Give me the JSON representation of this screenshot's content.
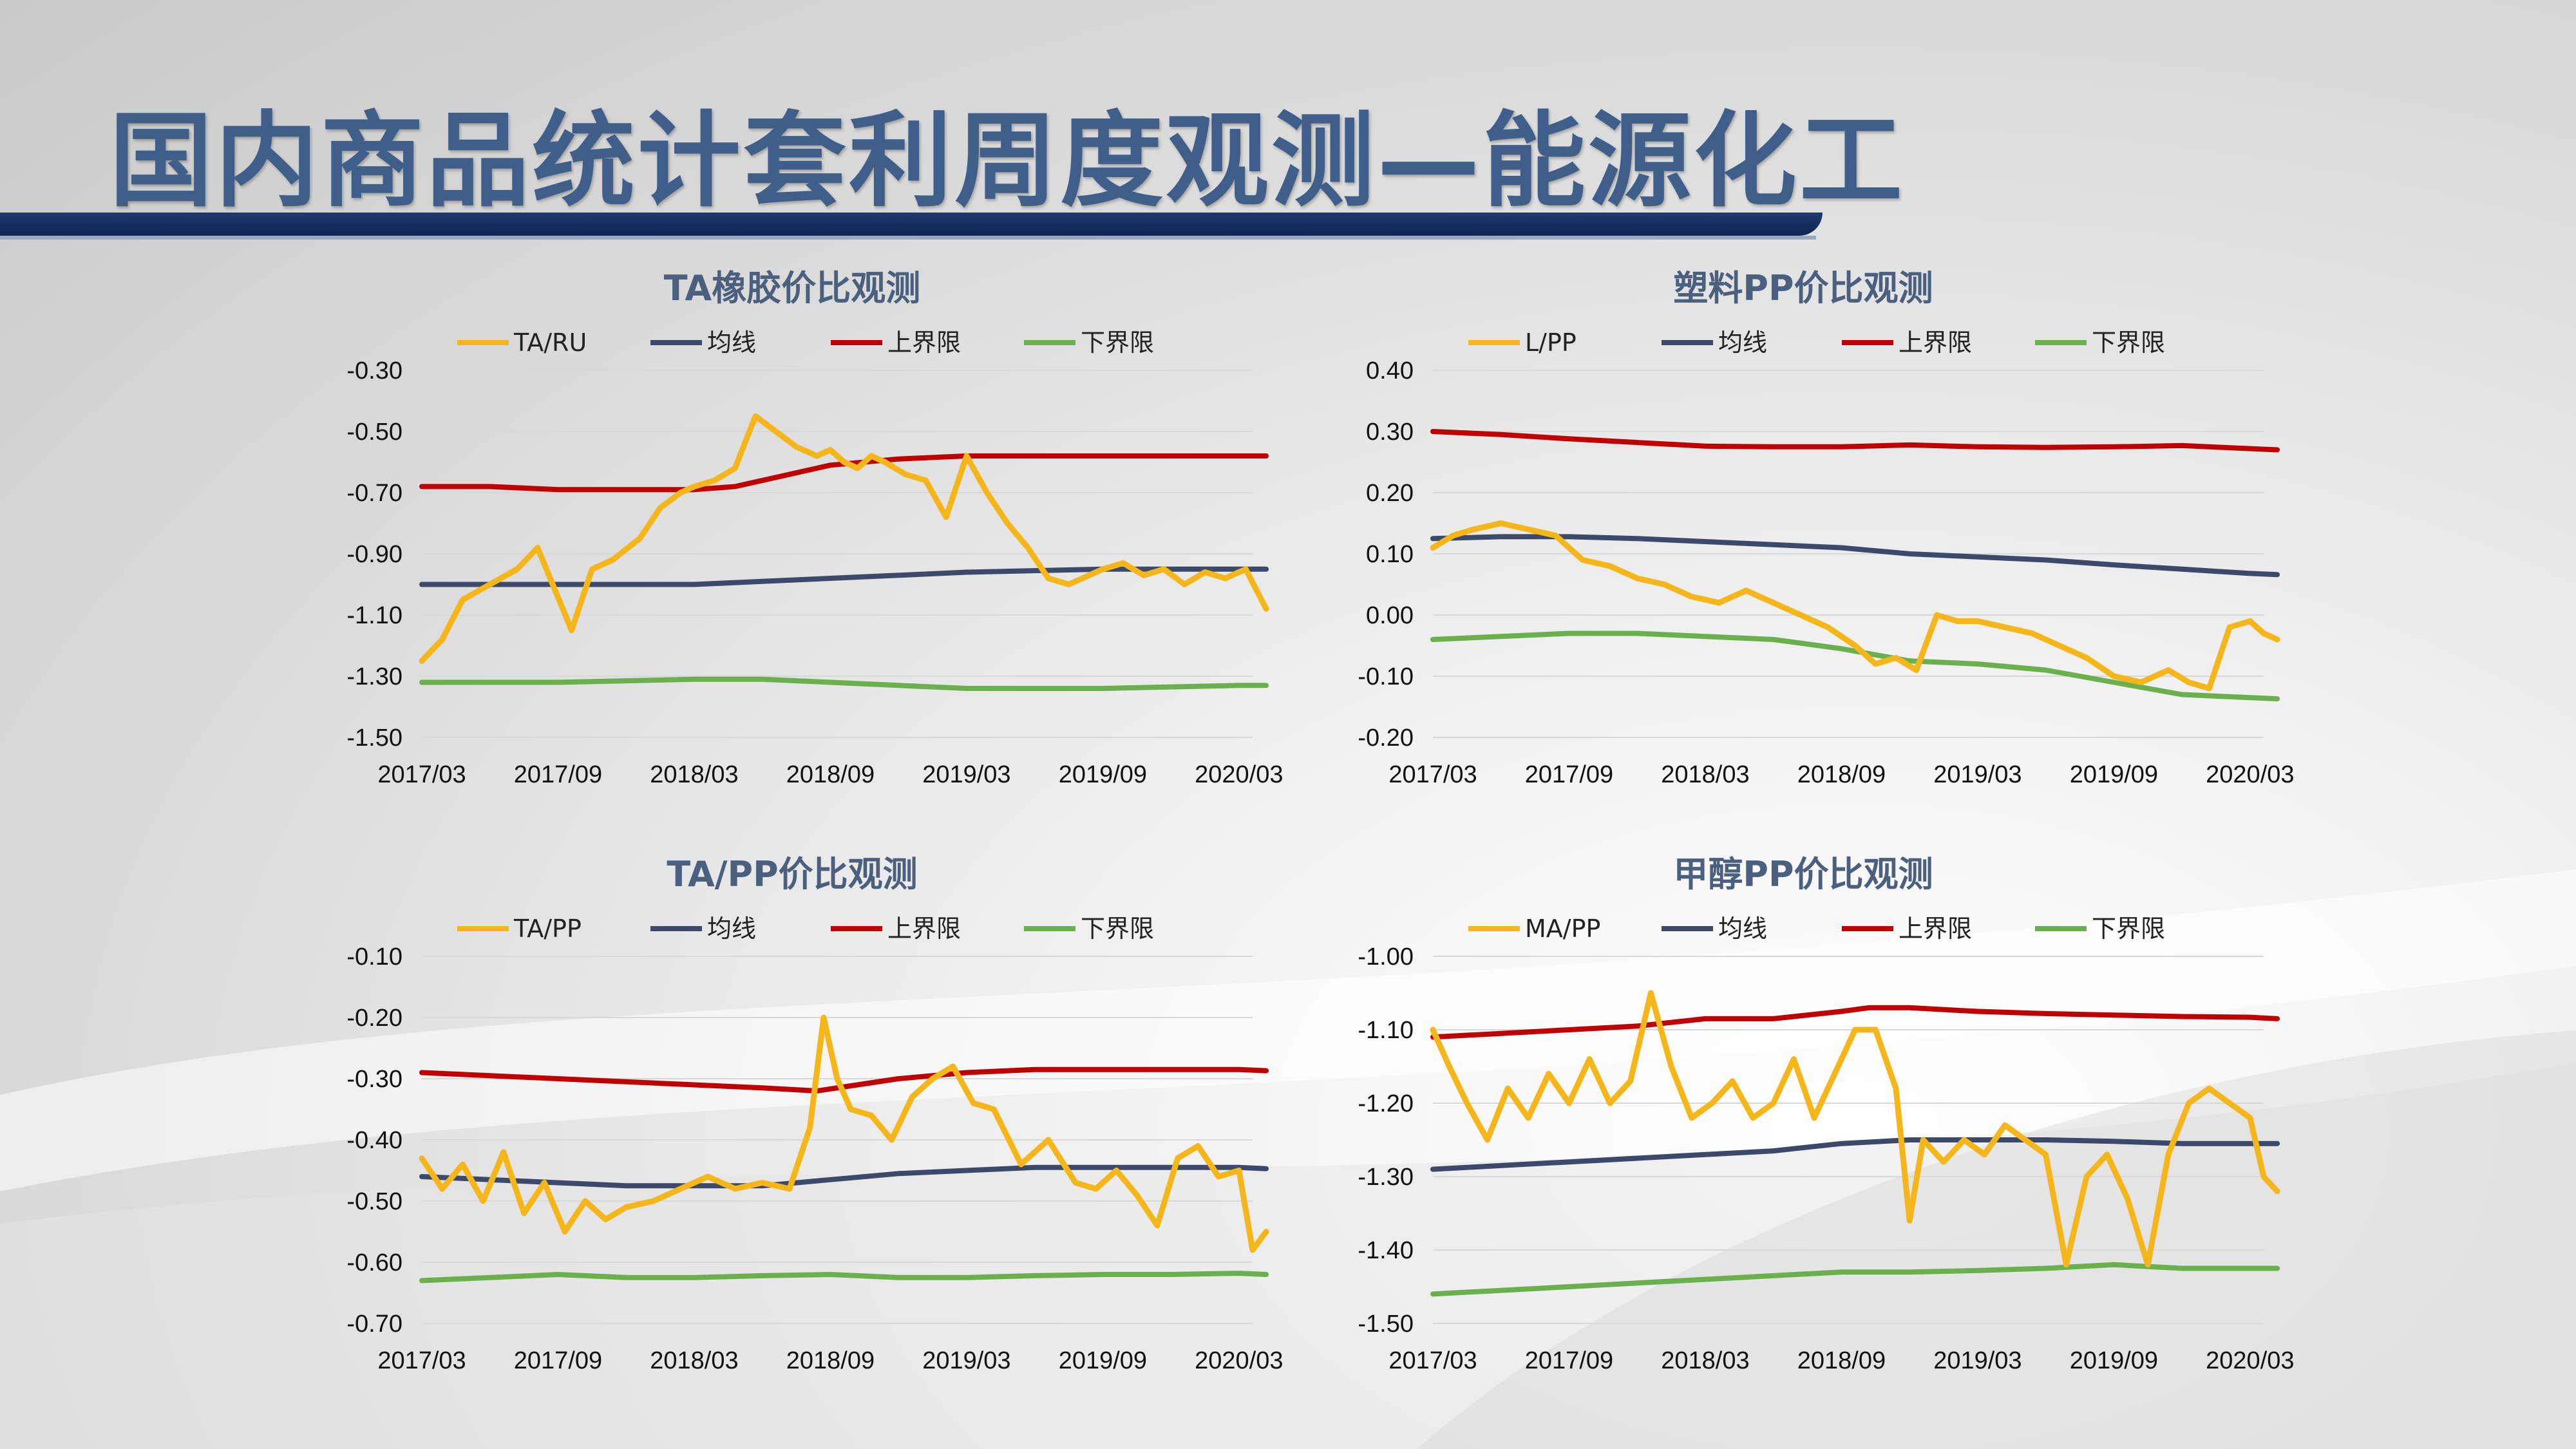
{
  "page": {
    "title": "国内商品统计套利周度观测—能源化工"
  },
  "colors": {
    "title": "#3f5f8a",
    "ratio": "#f4b61a",
    "mean": "#3b4a6b",
    "upper": "#c00000",
    "lower": "#6ab04c"
  },
  "chart_data": [
    {
      "type": "line",
      "title": "TA橡胶价比观测",
      "legend": [
        "TA/RU",
        "均线",
        "上界限",
        "下界限"
      ],
      "x_ticks": [
        "2017/03",
        "2017/09",
        "2018/03",
        "2018/09",
        "2019/03",
        "2019/09",
        "2020/03"
      ],
      "y_ticks": [
        "-0.30",
        "-0.50",
        "-0.70",
        "-0.90",
        "-1.10",
        "-1.30",
        "-1.50"
      ],
      "ylim": [
        -1.5,
        -0.3
      ],
      "series": [
        {
          "name": "TA/RU",
          "x": [
            0,
            0.15,
            0.3,
            0.5,
            0.7,
            0.85,
            1.1,
            1.25,
            1.4,
            1.6,
            1.75,
            1.9,
            2.0,
            2.15,
            2.3,
            2.45,
            2.6,
            2.75,
            2.9,
            3.0,
            3.1,
            3.2,
            3.3,
            3.4,
            3.55,
            3.7,
            3.85,
            4.0,
            4.15,
            4.3,
            4.45,
            4.6,
            4.75,
            4.9,
            5.0,
            5.15,
            5.3,
            5.45,
            5.6,
            5.75,
            5.9,
            6.05,
            6.2
          ],
          "values": [
            -1.25,
            -1.18,
            -1.05,
            -1.0,
            -0.95,
            -0.88,
            -1.15,
            -0.95,
            -0.92,
            -0.85,
            -0.75,
            -0.7,
            -0.68,
            -0.66,
            -0.62,
            -0.45,
            -0.5,
            -0.55,
            -0.58,
            -0.56,
            -0.6,
            -0.62,
            -0.58,
            -0.6,
            -0.64,
            -0.66,
            -0.78,
            -0.58,
            -0.7,
            -0.8,
            -0.88,
            -0.98,
            -1.0,
            -0.97,
            -0.95,
            -0.93,
            -0.97,
            -0.95,
            -1.0,
            -0.96,
            -0.98,
            -0.95,
            -1.08
          ]
        },
        {
          "name": "均线",
          "x": [
            0,
            0.5,
            1,
            1.5,
            2,
            2.5,
            3,
            3.5,
            4,
            4.5,
            5,
            5.5,
            6,
            6.2
          ],
          "values": [
            -1.0,
            -1.0,
            -1.0,
            -1.0,
            -1.0,
            -0.99,
            -0.98,
            -0.97,
            -0.96,
            -0.955,
            -0.95,
            -0.95,
            -0.95,
            -0.95
          ]
        },
        {
          "name": "上界限",
          "x": [
            0,
            0.5,
            1,
            1.5,
            2,
            2.3,
            2.6,
            3,
            3.5,
            4,
            4.5,
            5,
            5.5,
            6,
            6.2
          ],
          "values": [
            -0.68,
            -0.68,
            -0.69,
            -0.69,
            -0.69,
            -0.68,
            -0.65,
            -0.61,
            -0.59,
            -0.58,
            -0.58,
            -0.58,
            -0.58,
            -0.58,
            -0.58
          ]
        },
        {
          "name": "下界限",
          "x": [
            0,
            0.5,
            1,
            1.5,
            2,
            2.5,
            3,
            3.5,
            4,
            4.5,
            5,
            5.5,
            6,
            6.2
          ],
          "values": [
            -1.32,
            -1.32,
            -1.32,
            -1.315,
            -1.31,
            -1.31,
            -1.32,
            -1.33,
            -1.34,
            -1.34,
            -1.34,
            -1.335,
            -1.33,
            -1.33
          ]
        }
      ]
    },
    {
      "type": "line",
      "title": "塑料PP价比观测",
      "legend": [
        "L/PP",
        "均线",
        "上界限",
        "下界限"
      ],
      "x_ticks": [
        "2017/03",
        "2017/09",
        "2018/03",
        "2018/09",
        "2019/03",
        "2019/09",
        "2020/03"
      ],
      "y_ticks": [
        "0.40",
        "0.30",
        "0.20",
        "0.10",
        "0.00",
        "-0.10",
        "-0.20"
      ],
      "ylim": [
        -0.2,
        0.4
      ],
      "series": [
        {
          "name": "L/PP",
          "x": [
            0,
            0.15,
            0.3,
            0.5,
            0.7,
            0.9,
            1.1,
            1.3,
            1.5,
            1.7,
            1.9,
            2.1,
            2.3,
            2.5,
            2.7,
            2.9,
            3.1,
            3.25,
            3.4,
            3.55,
            3.7,
            3.85,
            4.0,
            4.2,
            4.4,
            4.6,
            4.8,
            5.0,
            5.2,
            5.4,
            5.55,
            5.7,
            5.85,
            6.0,
            6.1,
            6.2
          ],
          "values": [
            0.11,
            0.13,
            0.14,
            0.15,
            0.14,
            0.13,
            0.09,
            0.08,
            0.06,
            0.05,
            0.03,
            0.02,
            0.04,
            0.02,
            0.0,
            -0.02,
            -0.05,
            -0.08,
            -0.07,
            -0.09,
            0.0,
            -0.01,
            -0.01,
            -0.02,
            -0.03,
            -0.05,
            -0.07,
            -0.1,
            -0.11,
            -0.09,
            -0.11,
            -0.12,
            -0.02,
            -0.01,
            -0.03,
            -0.04
          ]
        },
        {
          "name": "均线",
          "x": [
            0,
            0.5,
            1,
            1.5,
            2,
            2.5,
            3,
            3.5,
            4,
            4.5,
            5,
            5.5,
            6,
            6.2
          ],
          "values": [
            0.125,
            0.128,
            0.128,
            0.125,
            0.12,
            0.115,
            0.11,
            0.1,
            0.095,
            0.09,
            0.082,
            0.075,
            0.068,
            0.066
          ]
        },
        {
          "name": "上界限",
          "x": [
            0,
            0.5,
            1,
            1.5,
            2,
            2.5,
            3,
            3.5,
            4,
            4.5,
            5,
            5.5,
            6,
            6.2
          ],
          "values": [
            0.3,
            0.295,
            0.288,
            0.282,
            0.276,
            0.275,
            0.275,
            0.278,
            0.275,
            0.274,
            0.275,
            0.277,
            0.272,
            0.27
          ]
        },
        {
          "name": "下界限",
          "x": [
            0,
            0.5,
            1,
            1.5,
            2,
            2.5,
            3,
            3.5,
            4,
            4.5,
            5,
            5.5,
            6,
            6.2
          ],
          "values": [
            -0.04,
            -0.035,
            -0.03,
            -0.03,
            -0.035,
            -0.04,
            -0.055,
            -0.075,
            -0.08,
            -0.09,
            -0.11,
            -0.13,
            -0.135,
            -0.137
          ]
        }
      ]
    },
    {
      "type": "line",
      "title": "TA/PP价比观测",
      "legend": [
        "TA/PP",
        "均线",
        "上界限",
        "下界限"
      ],
      "x_ticks": [
        "2017/03",
        "2017/09",
        "2018/03",
        "2018/09",
        "2019/03",
        "2019/09",
        "2020/03"
      ],
      "y_ticks": [
        "-0.10",
        "-0.20",
        "-0.30",
        "-0.40",
        "-0.50",
        "-0.60",
        "-0.70"
      ],
      "ylim": [
        -0.7,
        -0.1
      ],
      "series": [
        {
          "name": "TA/PP",
          "x": [
            0,
            0.15,
            0.3,
            0.45,
            0.6,
            0.75,
            0.9,
            1.05,
            1.2,
            1.35,
            1.5,
            1.7,
            1.9,
            2.1,
            2.3,
            2.5,
            2.7,
            2.85,
            2.95,
            3.05,
            3.15,
            3.3,
            3.45,
            3.6,
            3.75,
            3.9,
            4.05,
            4.2,
            4.4,
            4.6,
            4.8,
            4.95,
            5.1,
            5.25,
            5.4,
            5.55,
            5.7,
            5.85,
            6.0,
            6.1,
            6.2
          ],
          "values": [
            -0.43,
            -0.48,
            -0.44,
            -0.5,
            -0.42,
            -0.52,
            -0.47,
            -0.55,
            -0.5,
            -0.53,
            -0.51,
            -0.5,
            -0.48,
            -0.46,
            -0.48,
            -0.47,
            -0.48,
            -0.38,
            -0.2,
            -0.3,
            -0.35,
            -0.36,
            -0.4,
            -0.33,
            -0.3,
            -0.28,
            -0.34,
            -0.35,
            -0.44,
            -0.4,
            -0.47,
            -0.48,
            -0.45,
            -0.49,
            -0.54,
            -0.43,
            -0.41,
            -0.46,
            -0.45,
            -0.58,
            -0.55
          ]
        },
        {
          "name": "均线",
          "x": [
            0,
            0.5,
            1,
            1.5,
            2,
            2.5,
            3,
            3.5,
            4,
            4.5,
            5,
            5.5,
            6,
            6.2
          ],
          "values": [
            -0.46,
            -0.465,
            -0.47,
            -0.475,
            -0.475,
            -0.475,
            -0.465,
            -0.455,
            -0.45,
            -0.445,
            -0.445,
            -0.445,
            -0.445,
            -0.447
          ]
        },
        {
          "name": "上界限",
          "x": [
            0,
            0.5,
            1,
            1.5,
            2,
            2.5,
            2.9,
            3.2,
            3.5,
            4,
            4.5,
            5,
            5.5,
            6,
            6.2
          ],
          "values": [
            -0.29,
            -0.295,
            -0.3,
            -0.305,
            -0.31,
            -0.315,
            -0.32,
            -0.31,
            -0.3,
            -0.29,
            -0.285,
            -0.285,
            -0.285,
            -0.285,
            -0.287
          ]
        },
        {
          "name": "下界限",
          "x": [
            0,
            0.5,
            1,
            1.5,
            2,
            2.5,
            3,
            3.5,
            4,
            4.5,
            5,
            5.5,
            6,
            6.2
          ],
          "values": [
            -0.63,
            -0.625,
            -0.62,
            -0.625,
            -0.625,
            -0.622,
            -0.62,
            -0.625,
            -0.625,
            -0.622,
            -0.62,
            -0.62,
            -0.618,
            -0.62
          ]
        }
      ]
    },
    {
      "type": "line",
      "title": "甲醇PP价比观测",
      "legend": [
        "MA/PP",
        "均线",
        "上界限",
        "下界限"
      ],
      "x_ticks": [
        "2017/03",
        "2017/09",
        "2018/03",
        "2018/09",
        "2019/03",
        "2019/09",
        "2020/03"
      ],
      "y_ticks": [
        "-1.00",
        "-1.10",
        "-1.20",
        "-1.30",
        "-1.40",
        "-1.50"
      ],
      "ylim": [
        -1.5,
        -1.0
      ],
      "series": [
        {
          "name": "MA/PP",
          "x": [
            0,
            0.12,
            0.25,
            0.4,
            0.55,
            0.7,
            0.85,
            1.0,
            1.15,
            1.3,
            1.45,
            1.6,
            1.75,
            1.9,
            2.05,
            2.2,
            2.35,
            2.5,
            2.65,
            2.8,
            2.95,
            3.1,
            3.25,
            3.4,
            3.5,
            3.6,
            3.75,
            3.9,
            4.05,
            4.2,
            4.35,
            4.5,
            4.65,
            4.8,
            4.95,
            5.1,
            5.25,
            5.4,
            5.55,
            5.7,
            5.85,
            6.0,
            6.1,
            6.2
          ],
          "values": [
            -1.1,
            -1.15,
            -1.2,
            -1.25,
            -1.18,
            -1.22,
            -1.16,
            -1.2,
            -1.14,
            -1.2,
            -1.17,
            -1.05,
            -1.15,
            -1.22,
            -1.2,
            -1.17,
            -1.22,
            -1.2,
            -1.14,
            -1.22,
            -1.16,
            -1.1,
            -1.1,
            -1.18,
            -1.36,
            -1.25,
            -1.28,
            -1.25,
            -1.27,
            -1.23,
            -1.25,
            -1.27,
            -1.42,
            -1.3,
            -1.27,
            -1.33,
            -1.42,
            -1.27,
            -1.2,
            -1.18,
            -1.2,
            -1.22,
            -1.3,
            -1.32
          ]
        },
        {
          "name": "均线",
          "x": [
            0,
            0.5,
            1,
            1.5,
            2,
            2.5,
            3,
            3.5,
            4,
            4.5,
            5,
            5.5,
            6,
            6.2
          ],
          "values": [
            -1.29,
            -1.285,
            -1.28,
            -1.275,
            -1.27,
            -1.265,
            -1.255,
            -1.25,
            -1.25,
            -1.25,
            -1.252,
            -1.255,
            -1.255,
            -1.255
          ]
        },
        {
          "name": "上界限",
          "x": [
            0,
            0.5,
            1,
            1.5,
            2,
            2.5,
            3,
            3.2,
            3.5,
            4,
            4.5,
            5,
            5.5,
            6,
            6.2
          ],
          "values": [
            -1.11,
            -1.105,
            -1.1,
            -1.095,
            -1.085,
            -1.085,
            -1.075,
            -1.07,
            -1.07,
            -1.075,
            -1.078,
            -1.08,
            -1.082,
            -1.083,
            -1.085
          ]
        },
        {
          "name": "下界限",
          "x": [
            0,
            0.5,
            1,
            1.5,
            2,
            2.5,
            3,
            3.5,
            4,
            4.5,
            5,
            5.5,
            6,
            6.2
          ],
          "values": [
            -1.46,
            -1.455,
            -1.45,
            -1.445,
            -1.44,
            -1.435,
            -1.43,
            -1.43,
            -1.428,
            -1.425,
            -1.42,
            -1.425,
            -1.425,
            -1.425
          ]
        }
      ]
    }
  ]
}
